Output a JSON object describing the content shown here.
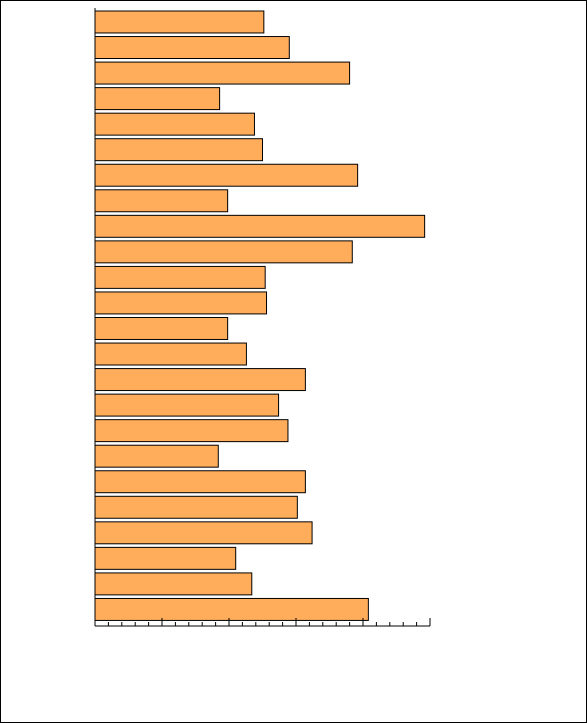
{
  "chart_data": {
    "type": "barh",
    "categories": [
      null,
      null,
      null,
      null,
      null,
      null,
      null,
      null,
      null,
      null,
      null,
      null,
      null,
      null,
      null,
      null,
      null,
      null,
      null,
      null,
      null,
      null,
      null,
      null
    ],
    "values": [
      12.6,
      14.5,
      19.0,
      9.3,
      11.9,
      12.5,
      19.6,
      9.9,
      24.6,
      19.2,
      12.7,
      12.8,
      9.9,
      11.3,
      15.7,
      13.7,
      14.4,
      9.2,
      15.7,
      15.1,
      16.2,
      10.5,
      11.7,
      20.4
    ],
    "color": "#ffad5b",
    "xlim": [
      0,
      25
    ],
    "xticks": [
      0,
      1,
      2,
      3,
      4,
      5,
      6,
      7,
      8,
      9,
      10,
      11,
      12,
      13,
      14,
      15,
      16,
      17,
      18,
      19,
      20,
      21,
      22,
      23,
      24,
      25
    ]
  }
}
